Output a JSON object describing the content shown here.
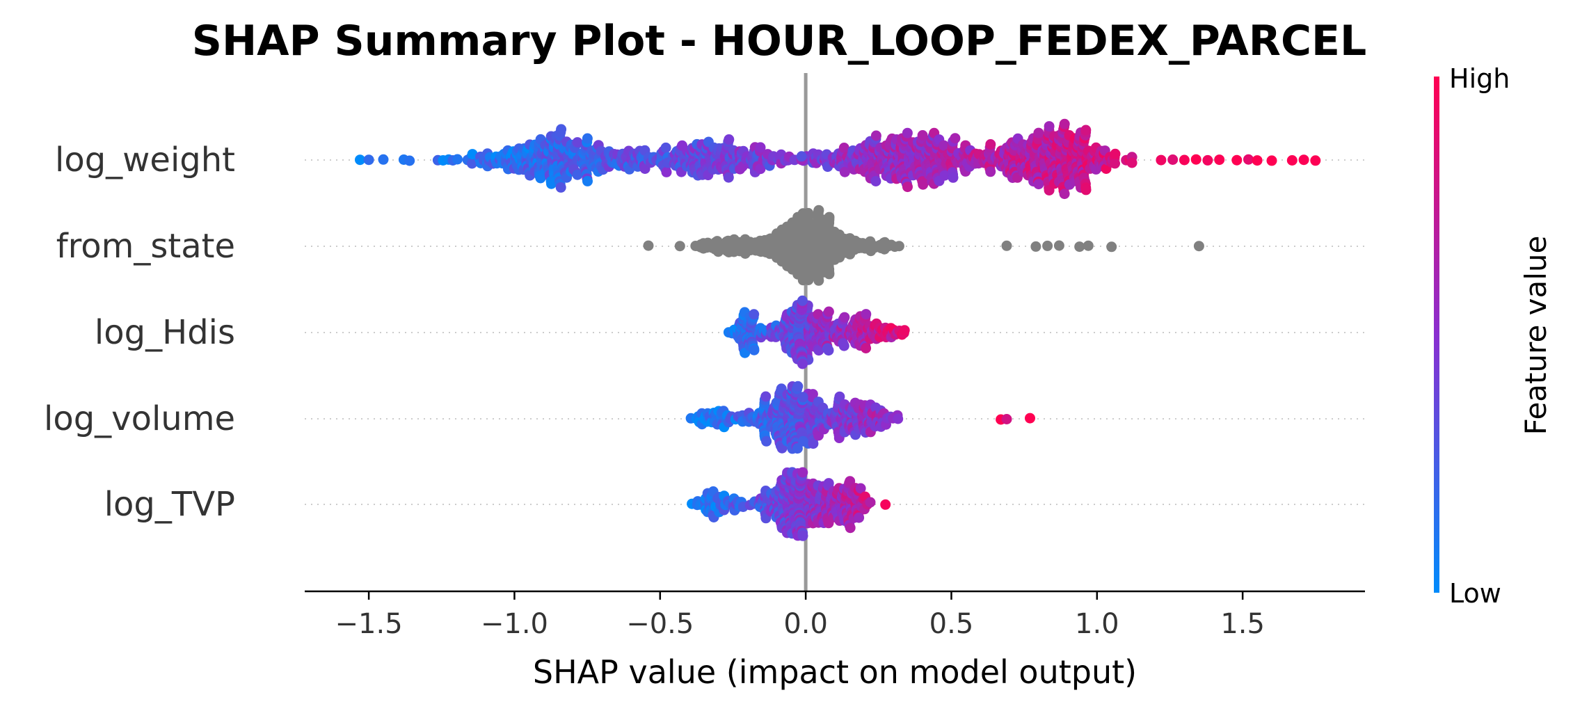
{
  "chart_data": {
    "type": "scatter",
    "subtype": "shap-beeswarm",
    "title": "SHAP Summary Plot - HOUR_LOOP_FEDEX_PARCEL",
    "xlabel": "SHAP value (impact on model output)",
    "xlim": [
      -1.72,
      1.92
    ],
    "x_ticks": [
      -1.5,
      -1.0,
      -0.5,
      0.0,
      0.5,
      1.0,
      1.5
    ],
    "x_tick_labels": [
      "−1.5",
      "−1.0",
      "−0.5",
      "0.0",
      "0.5",
      "1.0",
      "1.5"
    ],
    "zero_line": 0.0,
    "grid": false,
    "colorbar": {
      "label": "Feature value",
      "high_label": "High",
      "low_label": "Low",
      "low_color": "#008bfb",
      "high_color": "#ff0052"
    },
    "features": [
      {
        "name": "log_weight",
        "min": -1.55,
        "max": 1.75,
        "colored": true,
        "main_range": [
          -1.3,
          1.12
        ],
        "max_half_width": 0.42,
        "outliers": [
          -1.53,
          -1.5,
          -1.45,
          -1.38,
          -1.36,
          1.22,
          1.26,
          1.3,
          1.34,
          1.38,
          1.42,
          1.48,
          1.52,
          1.55,
          1.6,
          1.67,
          1.71,
          1.75
        ]
      },
      {
        "name": "from_state",
        "min": -0.54,
        "max": 1.35,
        "colored": false,
        "neutral_color": "#808080",
        "main_range": [
          -0.48,
          0.38
        ],
        "max_half_width": 0.42,
        "outliers": [
          -0.54,
          0.69,
          0.79,
          0.83,
          0.87,
          0.94,
          0.97,
          1.05,
          1.35
        ]
      },
      {
        "name": "log_Hdis",
        "min": -0.35,
        "max": 0.47,
        "colored": true,
        "main_range": [
          -0.35,
          0.47
        ],
        "max_half_width": 0.38,
        "outliers": []
      },
      {
        "name": "log_volume",
        "min": -0.43,
        "max": 0.77,
        "colored": true,
        "main_range": [
          -0.43,
          0.43
        ],
        "max_half_width": 0.38,
        "outliers": [
          0.67,
          0.69,
          0.77
        ]
      },
      {
        "name": "log_TVP",
        "min": -0.43,
        "max": 0.45,
        "colored": true,
        "main_range": [
          -0.43,
          0.45
        ],
        "max_half_width": 0.38,
        "outliers": []
      }
    ]
  },
  "colors": {
    "axis": "#000000",
    "zero_line": "#999999",
    "row_guides": "#cccccc",
    "text": "#333333"
  }
}
